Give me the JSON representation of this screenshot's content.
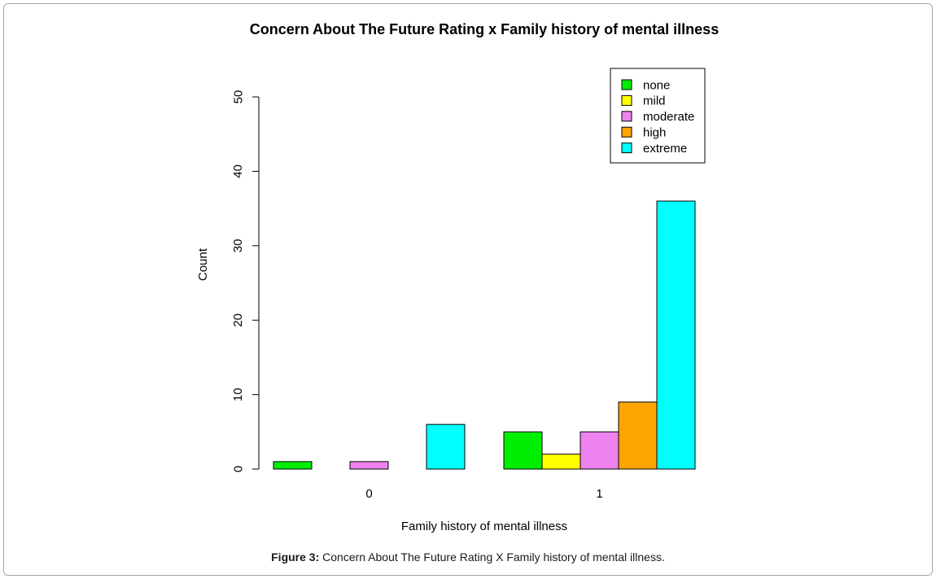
{
  "chart_data": {
    "type": "bar",
    "title": "Concern About The Future Rating x Family history of mental illness",
    "xlabel": "Family history of mental illness",
    "ylabel": "Count",
    "categories": [
      "0",
      "1"
    ],
    "ylim": [
      0,
      50
    ],
    "yticks": [
      0,
      10,
      20,
      30,
      40,
      50
    ],
    "grid": false,
    "legend_position": "top-right",
    "series": [
      {
        "name": "none",
        "color": "#00ee00",
        "values": [
          1,
          5
        ]
      },
      {
        "name": "mild",
        "color": "#ffff00",
        "values": [
          0,
          2
        ]
      },
      {
        "name": "moderate",
        "color": "#ee82ee",
        "values": [
          1,
          5
        ]
      },
      {
        "name": "high",
        "color": "#ffa500",
        "values": [
          0,
          9
        ]
      },
      {
        "name": "extreme",
        "color": "#00ffff",
        "values": [
          6,
          36
        ]
      }
    ]
  },
  "caption": {
    "label": "Figure 3:",
    "text": " Concern About The Future Rating X Family history of mental illness."
  }
}
